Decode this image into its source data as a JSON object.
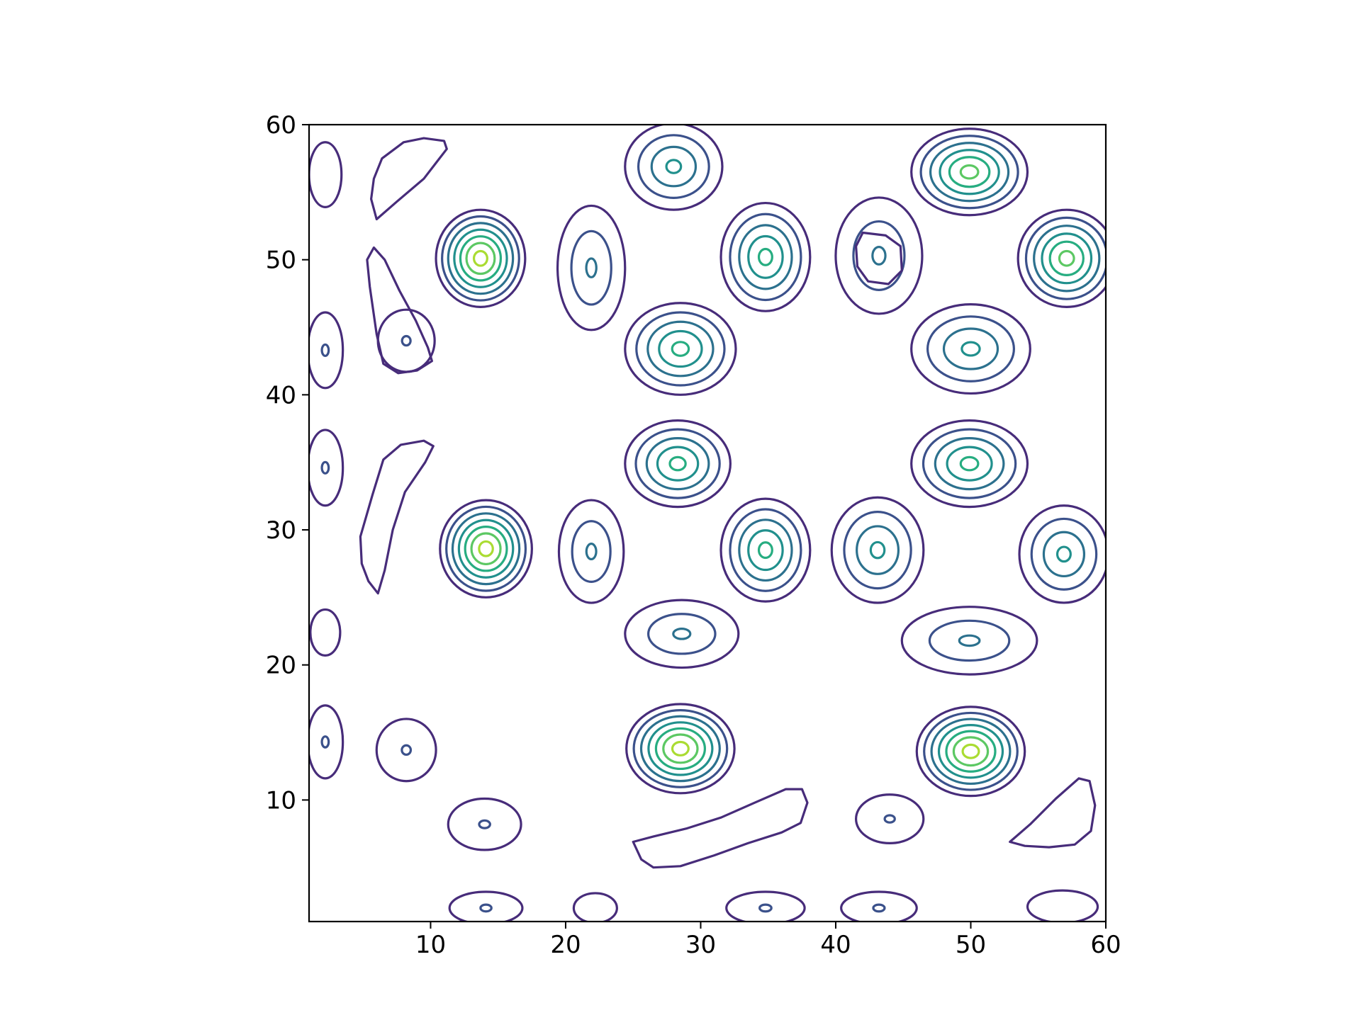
{
  "chart_data": {
    "type": "contour",
    "title": "",
    "xlabel": "",
    "ylabel": "",
    "xlim": [
      1,
      60
    ],
    "ylim": [
      1,
      60
    ],
    "x_ticks": [
      10,
      20,
      30,
      40,
      50,
      60
    ],
    "y_ticks": [
      10,
      20,
      30,
      40,
      50,
      60
    ],
    "x_tick_labels": [
      "10",
      "20",
      "30",
      "40",
      "50",
      "60"
    ],
    "y_tick_labels": [
      "10",
      "20",
      "30",
      "40",
      "50",
      "60"
    ],
    "grid": false,
    "legend": "none",
    "colormap": "viridis",
    "level_colors": [
      "#472c7a",
      "#3b518b",
      "#2c718e",
      "#21908d",
      "#27ad81",
      "#5cc863",
      "#aadc32"
    ],
    "peaks": [
      {
        "x": 13.7,
        "y": 50.1,
        "rx": 3.3,
        "ry": 3.6,
        "levels": 7
      },
      {
        "x": 14.1,
        "y": 28.6,
        "rx": 3.4,
        "ry": 3.6,
        "levels": 7
      },
      {
        "x": 28.5,
        "y": 13.8,
        "rx": 4.0,
        "ry": 3.3,
        "levels": 7
      },
      {
        "x": 50.0,
        "y": 13.6,
        "rx": 4.0,
        "ry": 3.3,
        "levels": 7
      },
      {
        "x": 49.9,
        "y": 56.5,
        "rx": 4.3,
        "ry": 3.2,
        "levels": 6
      },
      {
        "x": 57.1,
        "y": 50.1,
        "rx": 3.6,
        "ry": 3.6,
        "levels": 6
      },
      {
        "x": 28.5,
        "y": 43.4,
        "rx": 4.1,
        "ry": 3.4,
        "levels": 5
      },
      {
        "x": 28.3,
        "y": 34.9,
        "rx": 3.9,
        "ry": 3.2,
        "levels": 5
      },
      {
        "x": 49.9,
        "y": 34.9,
        "rx": 4.3,
        "ry": 3.2,
        "levels": 5
      },
      {
        "x": 34.8,
        "y": 50.2,
        "rx": 3.3,
        "ry": 4.0,
        "levels": 5
      },
      {
        "x": 34.8,
        "y": 28.5,
        "rx": 3.3,
        "ry": 3.8,
        "levels": 5
      },
      {
        "x": 28.0,
        "y": 56.9,
        "rx": 3.6,
        "ry": 3.2,
        "levels": 4
      },
      {
        "x": 50.0,
        "y": 43.4,
        "rx": 4.4,
        "ry": 3.3,
        "levels": 4
      },
      {
        "x": 43.1,
        "y": 28.5,
        "rx": 3.4,
        "ry": 3.9,
        "levels": 4
      },
      {
        "x": 56.9,
        "y": 28.2,
        "rx": 3.3,
        "ry": 3.6,
        "levels": 4
      },
      {
        "x": 43.2,
        "y": 50.3,
        "rx": 3.2,
        "ry": 4.3,
        "levels": 3
      },
      {
        "x": 28.6,
        "y": 22.3,
        "rx": 4.2,
        "ry": 2.5,
        "levels": 3
      },
      {
        "x": 49.9,
        "y": 21.8,
        "rx": 5.0,
        "ry": 2.5,
        "levels": 3
      },
      {
        "x": 21.9,
        "y": 49.4,
        "rx": 2.5,
        "ry": 4.6,
        "levels": 3
      },
      {
        "x": 21.9,
        "y": 28.4,
        "rx": 2.4,
        "ry": 3.8,
        "levels": 3
      },
      {
        "x": 2.2,
        "y": 43.3,
        "rx": 1.3,
        "ry": 2.8,
        "levels": 2
      },
      {
        "x": 2.2,
        "y": 34.6,
        "rx": 1.3,
        "ry": 2.8,
        "levels": 2
      },
      {
        "x": 2.2,
        "y": 14.3,
        "rx": 1.3,
        "ry": 2.7,
        "levels": 2
      },
      {
        "x": 8.2,
        "y": 13.7,
        "rx": 2.2,
        "ry": 2.3,
        "levels": 2
      },
      {
        "x": 8.2,
        "y": 44.0,
        "rx": 2.1,
        "ry": 2.3,
        "levels": 2
      },
      {
        "x": 14.0,
        "y": 8.2,
        "rx": 2.7,
        "ry": 1.9,
        "levels": 2
      },
      {
        "x": 14.1,
        "y": 2.0,
        "rx": 2.7,
        "ry": 1.2,
        "levels": 2
      },
      {
        "x": 34.8,
        "y": 2.0,
        "rx": 2.9,
        "ry": 1.2,
        "levels": 2
      },
      {
        "x": 43.2,
        "y": 2.0,
        "rx": 2.8,
        "ry": 1.2,
        "levels": 2
      },
      {
        "x": 44.0,
        "y": 8.6,
        "rx": 2.5,
        "ry": 1.8,
        "levels": 2
      },
      {
        "x": 2.2,
        "y": 56.3,
        "rx": 1.2,
        "ry": 2.4,
        "levels": 1
      },
      {
        "x": 2.2,
        "y": 22.4,
        "rx": 1.1,
        "ry": 1.7,
        "levels": 1
      },
      {
        "x": 22.2,
        "y": 2.0,
        "rx": 1.6,
        "ry": 1.1,
        "levels": 1
      },
      {
        "x": 56.8,
        "y": 2.1,
        "rx": 2.6,
        "ry": 1.2,
        "levels": 1
      }
    ],
    "ridges": [
      {
        "points": [
          [
            6.5,
            44.0
          ],
          [
            7.5,
            49.0
          ],
          [
            5.9,
            48.0
          ],
          [
            9.5,
            41.5
          ],
          [
            8.3,
            44.0
          ]
        ],
        "path": [
          [
            5.8,
            50.9
          ],
          [
            6.6,
            50.0
          ],
          [
            7.7,
            47.7
          ],
          [
            8.9,
            45.5
          ],
          [
            9.8,
            43.5
          ],
          [
            10.1,
            42.5
          ],
          [
            9.0,
            41.8
          ],
          [
            7.6,
            41.6
          ],
          [
            6.5,
            42.3
          ],
          [
            6.0,
            44.5
          ],
          [
            5.5,
            48.0
          ],
          [
            5.3,
            50.0
          ],
          [
            5.8,
            50.9
          ]
        ]
      },
      {
        "points": [],
        "path": [
          [
            6.0,
            53.0
          ],
          [
            7.5,
            54.3
          ],
          [
            9.5,
            56.0
          ],
          [
            10.5,
            57.3
          ],
          [
            11.2,
            58.2
          ],
          [
            11.0,
            58.8
          ],
          [
            9.5,
            59.0
          ],
          [
            8.0,
            58.7
          ],
          [
            6.4,
            57.5
          ],
          [
            5.8,
            56.0
          ],
          [
            5.6,
            54.5
          ],
          [
            6.0,
            53.0
          ]
        ]
      },
      {
        "points": [],
        "path": [
          [
            6.1,
            25.3
          ],
          [
            6.6,
            27.0
          ],
          [
            7.2,
            30.0
          ],
          [
            8.1,
            32.8
          ],
          [
            9.6,
            35.0
          ],
          [
            10.2,
            36.2
          ],
          [
            9.5,
            36.6
          ],
          [
            7.8,
            36.3
          ],
          [
            6.5,
            35.2
          ],
          [
            5.7,
            32.6
          ],
          [
            4.8,
            29.5
          ],
          [
            4.9,
            27.5
          ],
          [
            5.4,
            26.2
          ],
          [
            6.1,
            25.3
          ]
        ]
      },
      {
        "points": [],
        "path": [
          [
            25.0,
            6.9
          ],
          [
            26.5,
            7.3
          ],
          [
            29.0,
            7.9
          ],
          [
            31.5,
            8.7
          ],
          [
            34.0,
            9.8
          ],
          [
            36.3,
            10.8
          ],
          [
            37.5,
            10.8
          ],
          [
            37.9,
            9.8
          ],
          [
            37.4,
            8.3
          ],
          [
            36.0,
            7.6
          ],
          [
            33.5,
            6.8
          ],
          [
            31.0,
            5.9
          ],
          [
            28.5,
            5.1
          ],
          [
            26.5,
            5.0
          ],
          [
            25.6,
            5.6
          ],
          [
            25.0,
            6.9
          ]
        ]
      },
      {
        "points": [],
        "path": [
          [
            52.9,
            6.9
          ],
          [
            54.4,
            8.2
          ],
          [
            56.3,
            10.1
          ],
          [
            58.0,
            11.6
          ],
          [
            58.8,
            11.4
          ],
          [
            59.2,
            9.6
          ],
          [
            58.9,
            7.7
          ],
          [
            57.7,
            6.7
          ],
          [
            55.8,
            6.5
          ],
          [
            54.0,
            6.6
          ],
          [
            52.9,
            6.9
          ]
        ]
      },
      {
        "points": [],
        "path": [
          [
            42.0,
            52.0
          ],
          [
            43.7,
            51.8
          ],
          [
            44.8,
            51.0
          ],
          [
            44.9,
            49.2
          ],
          [
            43.9,
            48.2
          ],
          [
            42.4,
            48.4
          ],
          [
            41.6,
            49.5
          ],
          [
            41.5,
            51.0
          ],
          [
            42.0,
            52.0
          ]
        ]
      }
    ]
  }
}
